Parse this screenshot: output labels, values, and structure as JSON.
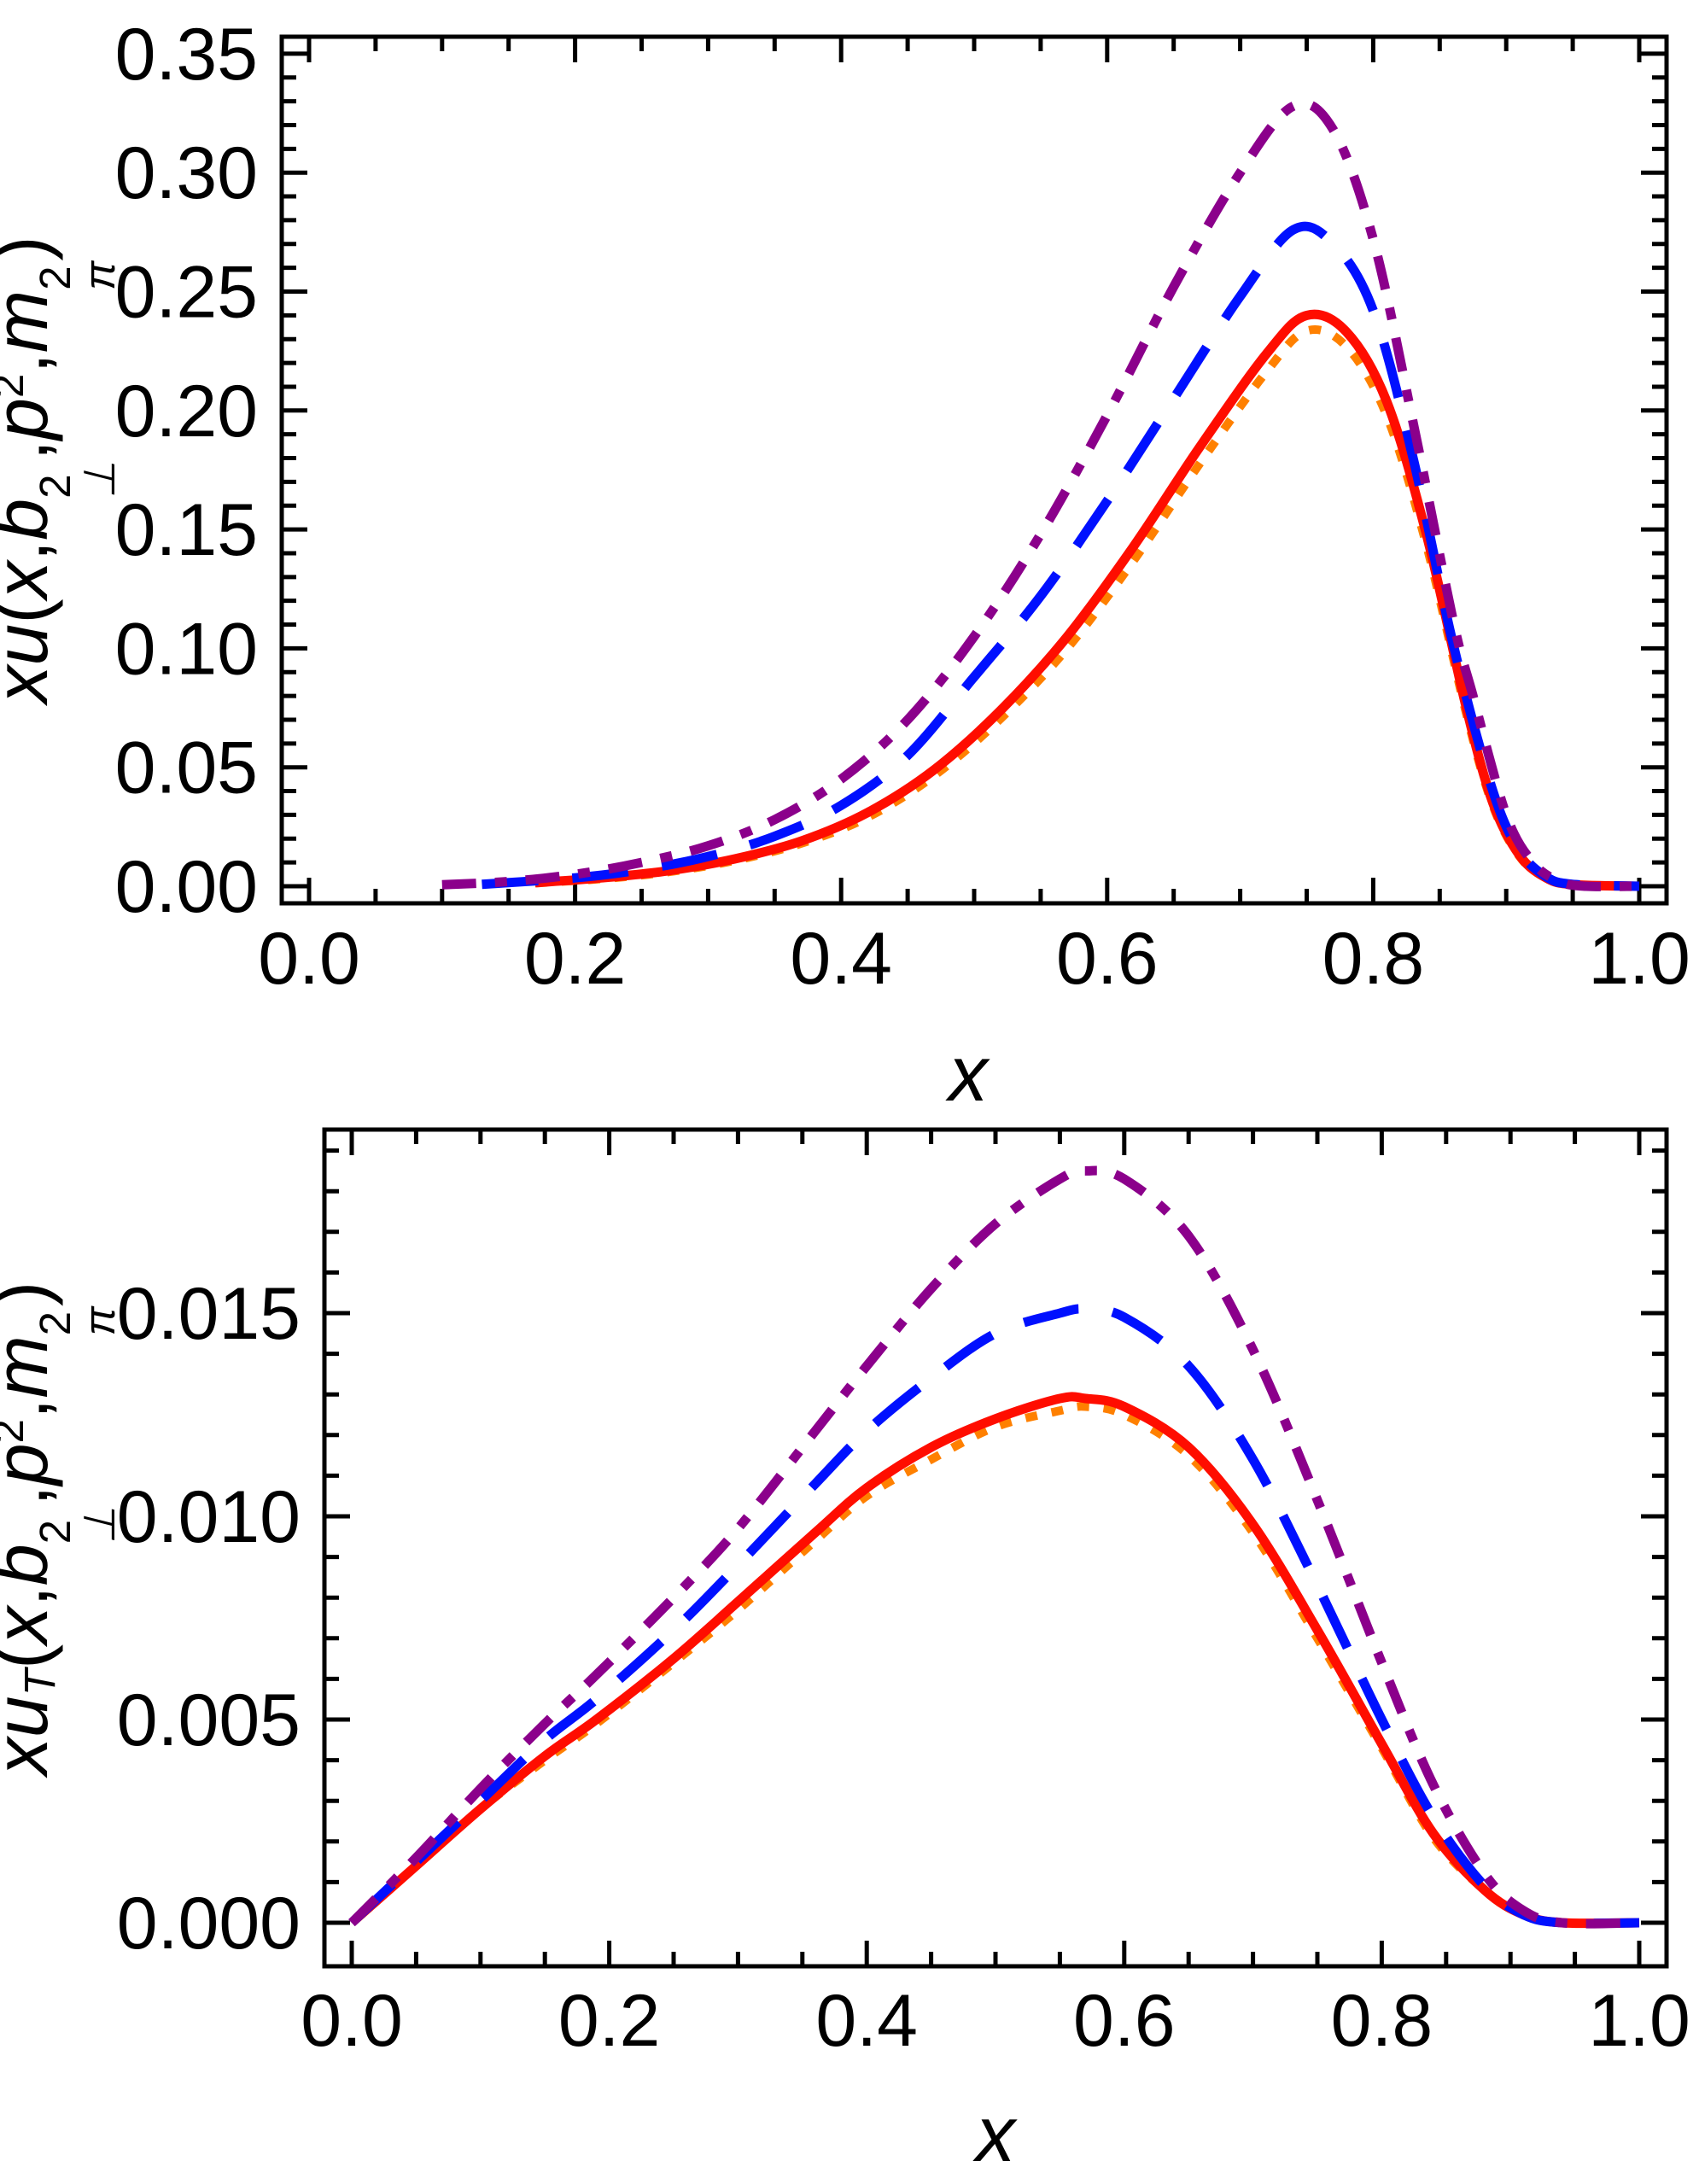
{
  "page": {
    "background": "#ffffff",
    "frame_color": "#000000",
    "text_color": "#000000"
  },
  "chart_data": [
    {
      "id": "top",
      "type": "line",
      "title": "",
      "xlabel": "x",
      "ylabel": "xu(x,b⊥²,p²,mπ²)",
      "ylabel_parts": [
        {
          "t": "xu",
          "style": "it"
        },
        {
          "t": "(",
          "style": "up"
        },
        {
          "t": "x",
          "style": "it"
        },
        {
          "t": ",",
          "style": "up"
        },
        {
          "t": "b",
          "style": "it",
          "sup": "2",
          "sub": "⊥"
        },
        {
          "t": ",",
          "style": "up"
        },
        {
          "t": "p",
          "style": "it",
          "sup": "2"
        },
        {
          "t": ",",
          "style": "up"
        },
        {
          "t": "m",
          "style": "it",
          "sup": "2",
          "sub": "π"
        },
        {
          "t": ")",
          "style": "up"
        }
      ],
      "xlim": [
        0,
        1
      ],
      "ylim": [
        0,
        0.35
      ],
      "grid": false,
      "legend": "none",
      "x_major_ticks": [
        {
          "value": 0.0,
          "label": "0.0"
        },
        {
          "value": 0.2,
          "label": "0.2"
        },
        {
          "value": 0.4,
          "label": "0.4"
        },
        {
          "value": 0.6,
          "label": "0.6"
        },
        {
          "value": 0.8,
          "label": "0.8"
        },
        {
          "value": 1.0,
          "label": "1.0"
        }
      ],
      "x_minor_step": 0.05,
      "y_major_ticks": [
        {
          "value": 0.0,
          "label": "0.00"
        },
        {
          "value": 0.05,
          "label": "0.05"
        },
        {
          "value": 0.1,
          "label": "0.10"
        },
        {
          "value": 0.15,
          "label": "0.15"
        },
        {
          "value": 0.2,
          "label": "0.20"
        },
        {
          "value": 0.25,
          "label": "0.25"
        },
        {
          "value": 0.3,
          "label": "0.30"
        },
        {
          "value": 0.35,
          "label": "0.35"
        }
      ],
      "y_minor_step": 0.01,
      "series": [
        {
          "name": "orange-dotted",
          "color": "#FF8000",
          "style": "dotted",
          "line_width": 10,
          "points": [
            [
              0.17,
              0.0013
            ],
            [
              0.22,
              0.0031
            ],
            [
              0.27,
              0.006
            ],
            [
              0.32,
              0.0108
            ],
            [
              0.37,
              0.018
            ],
            [
              0.42,
              0.029
            ],
            [
              0.47,
              0.0465
            ],
            [
              0.52,
              0.0705
            ],
            [
              0.57,
              0.1
            ],
            [
              0.62,
              0.137
            ],
            [
              0.67,
              0.178
            ],
            [
              0.72,
              0.2165
            ],
            [
              0.75,
              0.2335
            ],
            [
              0.78,
              0.2268
            ],
            [
              0.81,
              0.198
            ],
            [
              0.84,
              0.1435
            ],
            [
              0.87,
              0.0725
            ],
            [
              0.89,
              0.0338
            ],
            [
              0.91,
              0.0125
            ],
            [
              0.93,
              0.0034
            ],
            [
              0.95,
              0.0007
            ],
            [
              1.0,
              0.0
            ]
          ]
        },
        {
          "name": "red-solid",
          "color": "#FF0D00",
          "style": "solid",
          "line_width": 11,
          "points": [
            [
              0.17,
              0.0015
            ],
            [
              0.22,
              0.0035
            ],
            [
              0.27,
              0.0065
            ],
            [
              0.32,
              0.0115
            ],
            [
              0.37,
              0.019
            ],
            [
              0.42,
              0.031
            ],
            [
              0.47,
              0.049
            ],
            [
              0.52,
              0.074
            ],
            [
              0.57,
              0.105
            ],
            [
              0.62,
              0.143
            ],
            [
              0.67,
              0.185
            ],
            [
              0.72,
              0.224
            ],
            [
              0.75,
              0.24
            ],
            [
              0.78,
              0.233
            ],
            [
              0.81,
              0.204
            ],
            [
              0.84,
              0.148
            ],
            [
              0.87,
              0.075
            ],
            [
              0.89,
              0.035
            ],
            [
              0.91,
              0.013
            ],
            [
              0.93,
              0.0035
            ],
            [
              0.95,
              0.0007
            ],
            [
              1.0,
              0.0
            ]
          ]
        },
        {
          "name": "blue-dashed",
          "color": "#0010FF",
          "style": "dashed",
          "line_width": 11,
          "points": [
            [
              0.13,
              0.0008
            ],
            [
              0.2,
              0.0035
            ],
            [
              0.25,
              0.007
            ],
            [
              0.3,
              0.0125
            ],
            [
              0.35,
              0.021
            ],
            [
              0.4,
              0.034
            ],
            [
              0.45,
              0.055
            ],
            [
              0.5,
              0.088
            ],
            [
              0.55,
              0.122
            ],
            [
              0.6,
              0.162
            ],
            [
              0.65,
              0.205
            ],
            [
              0.7,
              0.248
            ],
            [
              0.74,
              0.276
            ],
            [
              0.77,
              0.27
            ],
            [
              0.8,
              0.242
            ],
            [
              0.83,
              0.18
            ],
            [
              0.86,
              0.102
            ],
            [
              0.89,
              0.04
            ],
            [
              0.91,
              0.015
            ],
            [
              0.93,
              0.004
            ],
            [
              0.95,
              0.0008
            ],
            [
              1.0,
              0.0
            ]
          ]
        },
        {
          "name": "purple-dash-dotted",
          "color": "#8B008B",
          "style": "dash-dot",
          "line_width": 11,
          "points": [
            [
              0.1,
              0.0006
            ],
            [
              0.15,
              0.002
            ],
            [
              0.2,
              0.005
            ],
            [
              0.25,
              0.01
            ],
            [
              0.3,
              0.017
            ],
            [
              0.35,
              0.028
            ],
            [
              0.4,
              0.045
            ],
            [
              0.45,
              0.07
            ],
            [
              0.5,
              0.105
            ],
            [
              0.55,
              0.148
            ],
            [
              0.6,
              0.198
            ],
            [
              0.65,
              0.252
            ],
            [
              0.7,
              0.3
            ],
            [
              0.74,
              0.328
            ],
            [
              0.77,
              0.318
            ],
            [
              0.8,
              0.272
            ],
            [
              0.83,
              0.195
            ],
            [
              0.86,
              0.112
            ],
            [
              0.875,
              0.08
            ],
            [
              0.9,
              0.03
            ],
            [
              0.92,
              0.01
            ],
            [
              0.94,
              0.002
            ],
            [
              0.96,
              0.0
            ],
            [
              1.0,
              0.0
            ]
          ]
        }
      ]
    },
    {
      "id": "bottom",
      "type": "line",
      "title": "",
      "xlabel": "x",
      "ylabel": "xuT(x,b⊥²,p²,mπ²)",
      "ylabel_parts": [
        {
          "t": "x",
          "style": "it"
        },
        {
          "t": "u",
          "style": "it",
          "sub": "T"
        },
        {
          "t": "(",
          "style": "up"
        },
        {
          "t": "x",
          "style": "it"
        },
        {
          "t": ",",
          "style": "up"
        },
        {
          "t": "b",
          "style": "it",
          "sup": "2",
          "sub": "⊥"
        },
        {
          "t": ",",
          "style": "up"
        },
        {
          "t": "p",
          "style": "it",
          "sup": "2"
        },
        {
          "t": ",",
          "style": "up"
        },
        {
          "t": "m",
          "style": "it",
          "sup": "2",
          "sub": "π"
        },
        {
          "t": ")",
          "style": "up"
        }
      ],
      "xlim": [
        0,
        1
      ],
      "ylim": [
        0,
        0.0195
      ],
      "grid": false,
      "legend": "none",
      "x_major_ticks": [
        {
          "value": 0.0,
          "label": "0.0"
        },
        {
          "value": 0.2,
          "label": "0.2"
        },
        {
          "value": 0.4,
          "label": "0.4"
        },
        {
          "value": 0.6,
          "label": "0.6"
        },
        {
          "value": 0.8,
          "label": "0.8"
        },
        {
          "value": 1.0,
          "label": "1.0"
        }
      ],
      "x_minor_step": 0.05,
      "y_major_ticks": [
        {
          "value": 0.0,
          "label": "0.000"
        },
        {
          "value": 0.005,
          "label": "0.005"
        },
        {
          "value": 0.01,
          "label": "0.010"
        },
        {
          "value": 0.015,
          "label": "0.015"
        }
      ],
      "y_minor_step": 0.001,
      "series": [
        {
          "name": "orange-dotted",
          "color": "#FF8000",
          "style": "dotted",
          "line_width": 10,
          "points": [
            [
              0.0,
              0.0
            ],
            [
              0.05,
              0.0014
            ],
            [
              0.1,
              0.0028
            ],
            [
              0.15,
              0.004
            ],
            [
              0.19,
              0.0049
            ],
            [
              0.25,
              0.0064
            ],
            [
              0.3,
              0.0077
            ],
            [
              0.36,
              0.0094
            ],
            [
              0.4,
              0.0105
            ],
            [
              0.45,
              0.0114
            ],
            [
              0.5,
              0.0122
            ],
            [
              0.55,
              0.0126
            ],
            [
              0.57,
              0.0127
            ],
            [
              0.6,
              0.0125
            ],
            [
              0.65,
              0.0115
            ],
            [
              0.7,
              0.0096
            ],
            [
              0.75,
              0.007
            ],
            [
              0.8,
              0.0043
            ],
            [
              0.84,
              0.0021
            ],
            [
              0.88,
              0.0008
            ],
            [
              0.91,
              0.0002
            ],
            [
              0.94,
              0.0
            ],
            [
              1.0,
              0.0
            ]
          ]
        },
        {
          "name": "red-solid",
          "color": "#FF0D00",
          "style": "solid",
          "line_width": 11,
          "points": [
            [
              0.0,
              0.0
            ],
            [
              0.05,
              0.0014
            ],
            [
              0.1,
              0.0028
            ],
            [
              0.15,
              0.0041
            ],
            [
              0.19,
              0.005
            ],
            [
              0.25,
              0.0065
            ],
            [
              0.3,
              0.0079
            ],
            [
              0.36,
              0.0096
            ],
            [
              0.4,
              0.0107
            ],
            [
              0.45,
              0.0117
            ],
            [
              0.5,
              0.0124
            ],
            [
              0.55,
              0.0129
            ],
            [
              0.57,
              0.0129
            ],
            [
              0.6,
              0.0127
            ],
            [
              0.65,
              0.0117
            ],
            [
              0.7,
              0.0098
            ],
            [
              0.75,
              0.0072
            ],
            [
              0.8,
              0.0044
            ],
            [
              0.84,
              0.0022
            ],
            [
              0.88,
              0.0008
            ],
            [
              0.91,
              0.0002
            ],
            [
              0.94,
              0.0
            ],
            [
              1.0,
              0.0
            ]
          ]
        },
        {
          "name": "blue-dashed",
          "color": "#0010FF",
          "style": "dashed",
          "line_width": 11,
          "points": [
            [
              0.0,
              0.0
            ],
            [
              0.05,
              0.0015
            ],
            [
              0.1,
              0.003
            ],
            [
              0.15,
              0.0045
            ],
            [
              0.19,
              0.0055
            ],
            [
              0.25,
              0.0072
            ],
            [
              0.3,
              0.0088
            ],
            [
              0.36,
              0.0108
            ],
            [
              0.4,
              0.0121
            ],
            [
              0.45,
              0.0134
            ],
            [
              0.5,
              0.0145
            ],
            [
              0.55,
              0.015
            ],
            [
              0.57,
              0.0151
            ],
            [
              0.6,
              0.0149
            ],
            [
              0.65,
              0.0137
            ],
            [
              0.7,
              0.0114
            ],
            [
              0.75,
              0.0083
            ],
            [
              0.8,
              0.005
            ],
            [
              0.84,
              0.0026
            ],
            [
              0.88,
              0.0009
            ],
            [
              0.91,
              0.0002
            ],
            [
              0.94,
              0.0
            ],
            [
              1.0,
              0.0
            ]
          ]
        },
        {
          "name": "purple-dash-dotted",
          "color": "#8B008B",
          "style": "dash-dot",
          "line_width": 11,
          "points": [
            [
              0.0,
              0.0
            ],
            [
              0.05,
              0.0016
            ],
            [
              0.1,
              0.0033
            ],
            [
              0.15,
              0.0049
            ],
            [
              0.19,
              0.0061
            ],
            [
              0.25,
              0.008
            ],
            [
              0.3,
              0.0097
            ],
            [
              0.36,
              0.0121
            ],
            [
              0.4,
              0.0137
            ],
            [
              0.45,
              0.0156
            ],
            [
              0.5,
              0.0172
            ],
            [
              0.55,
              0.0183
            ],
            [
              0.57,
              0.0185
            ],
            [
              0.6,
              0.0183
            ],
            [
              0.65,
              0.0169
            ],
            [
              0.7,
              0.0141
            ],
            [
              0.75,
              0.0104
            ],
            [
              0.8,
              0.0064
            ],
            [
              0.84,
              0.0034
            ],
            [
              0.88,
              0.0012
            ],
            [
              0.91,
              0.0003
            ],
            [
              0.94,
              0.0
            ],
            [
              1.0,
              0.0
            ]
          ]
        }
      ]
    }
  ]
}
